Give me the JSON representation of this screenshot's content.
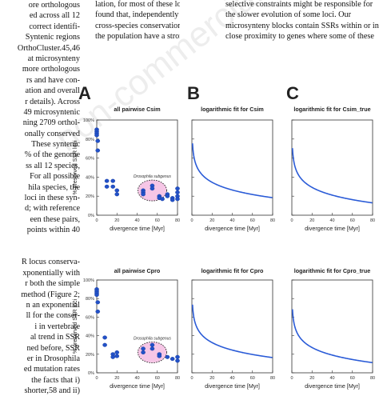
{
  "text_columns": {
    "col1": [
      "ore orthologous",
      "ed across all 12",
      "correct identifi-",
      "Syntenic regions",
      "OrthoCluster.45,46",
      "at microsynteny",
      "more orthologous",
      "rs and have con-",
      "ation and overall",
      "r details). Across",
      "49 microsyntenic",
      "ning 2709 orthol-",
      "onally conserved",
      "These syntenic",
      "% of the genome",
      "ss all 12 species,",
      "For all possible",
      "hila species, the",
      "loci in these syn-",
      "d; with reference",
      "een these pairs,",
      "points within 40",
      "",
      "",
      "R locus conserva-",
      "xponentially with",
      "r both the simple",
      "method (Figure 2;",
      "n an exponential",
      "ll for the conser-",
      "i in vertebrate",
      "al trend in SSR",
      "ned before, SSR",
      "er in Drosophila",
      "ed mutation rates",
      "the facts that i)",
      "shorter,58 and ii)"
    ],
    "col2": [
      "lation, for most of these loci (Figure 3B). We",
      "found that, independently from the degree of",
      "cross-species conservation, most SSR loci in",
      "the population have a strong locus conservation"
    ],
    "col3": [
      "selective constraints might be responsible for",
      "the slower evolution of some loci. Our",
      "microsynteny blocks contain SSRs within or in",
      "close proximity to genes where some of these"
    ]
  },
  "watermark": "non-commercial use only",
  "figure": {
    "panel_letters": [
      "A",
      "B",
      "C"
    ],
    "ylabel": "% preserved SSR loci",
    "xlabel": "divergence time [Myr]",
    "yticks": [
      "0%",
      "20%",
      "40%",
      "60%",
      "80%",
      "100%"
    ],
    "xticks": [
      "0",
      "20",
      "40",
      "60",
      "80"
    ],
    "annotation": "Drosophila subgenus",
    "row1_titles": [
      "all pairwise Csim",
      "logarithmic fit for Csim",
      "logarithmic fit for Csim_true"
    ],
    "row2_titles": [
      "all pairwise Cpro",
      "logarithmic fit for Cpro",
      "logarithmic fit for Cpro_true"
    ],
    "colors": {
      "points": "#2251c8",
      "curve": "#2a5bd7",
      "ellipse_fill": "#f6c6e6"
    }
  },
  "chart_data": [
    {
      "type": "scatter",
      "title": "all pairwise Csim",
      "xlabel": "divergence time [Myr]",
      "ylabel": "% preserved SSR loci",
      "xlim": [
        0,
        80
      ],
      "ylim": [
        0,
        100
      ],
      "points": [
        [
          0,
          90
        ],
        [
          0,
          88
        ],
        [
          0,
          86
        ],
        [
          0,
          84
        ],
        [
          1,
          78
        ],
        [
          1,
          68
        ],
        [
          10,
          36
        ],
        [
          10,
          30
        ],
        [
          16,
          36
        ],
        [
          16,
          30
        ],
        [
          20,
          26
        ],
        [
          20,
          22
        ],
        [
          46,
          26
        ],
        [
          46,
          24
        ],
        [
          46,
          22
        ],
        [
          55,
          31
        ],
        [
          55,
          28
        ],
        [
          62,
          20
        ],
        [
          62,
          18
        ],
        [
          65,
          17
        ],
        [
          70,
          22
        ],
        [
          70,
          20
        ],
        [
          75,
          18
        ],
        [
          75,
          16
        ],
        [
          80,
          28
        ],
        [
          80,
          24
        ],
        [
          80,
          20
        ],
        [
          80,
          17
        ]
      ]
    },
    {
      "type": "line",
      "title": "logarithmic fit for Csim",
      "xlabel": "divergence time [Myr]",
      "xlim": [
        0,
        80
      ],
      "ylim": [
        0,
        100
      ],
      "x": [
        1,
        5,
        10,
        20,
        40,
        60,
        80
      ],
      "y": [
        68,
        52,
        44,
        35,
        26,
        21,
        18
      ]
    },
    {
      "type": "line",
      "title": "logarithmic fit for Csim_true",
      "xlabel": "divergence time [Myr]",
      "xlim": [
        0,
        80
      ],
      "ylim": [
        0,
        100
      ],
      "x": [
        1,
        5,
        10,
        20,
        40,
        60,
        80
      ],
      "y": [
        64,
        46,
        38,
        29,
        21,
        16,
        13
      ]
    },
    {
      "type": "scatter",
      "title": "all pairwise Cpro",
      "xlabel": "divergence time [Myr]",
      "ylabel": "% preserved SSR loci",
      "xlim": [
        0,
        80
      ],
      "ylim": [
        0,
        100
      ],
      "points": [
        [
          0,
          90
        ],
        [
          0,
          88
        ],
        [
          0,
          86
        ],
        [
          0,
          84
        ],
        [
          1,
          76
        ],
        [
          1,
          66
        ],
        [
          8,
          38
        ],
        [
          8,
          30
        ],
        [
          16,
          20
        ],
        [
          16,
          17
        ],
        [
          20,
          22
        ],
        [
          20,
          18
        ],
        [
          46,
          26
        ],
        [
          46,
          22
        ],
        [
          55,
          30
        ],
        [
          55,
          26
        ],
        [
          62,
          20
        ],
        [
          62,
          18
        ],
        [
          70,
          17
        ],
        [
          75,
          15
        ],
        [
          80,
          17
        ],
        [
          80,
          13
        ]
      ]
    },
    {
      "type": "line",
      "title": "logarithmic fit for Cpro",
      "xlabel": "divergence time [Myr]",
      "xlim": [
        0,
        80
      ],
      "ylim": [
        0,
        100
      ],
      "x": [
        1,
        5,
        10,
        20,
        40,
        60,
        80
      ],
      "y": [
        66,
        50,
        42,
        33,
        24,
        19,
        16
      ]
    },
    {
      "type": "line",
      "title": "logarithmic fit for Cpro_true",
      "xlabel": "divergence time [Myr]",
      "xlim": [
        0,
        80
      ],
      "ylim": [
        0,
        100
      ],
      "x": [
        1,
        5,
        10,
        20,
        40,
        60,
        80
      ],
      "y": [
        62,
        44,
        36,
        27,
        19,
        14,
        11
      ]
    }
  ]
}
